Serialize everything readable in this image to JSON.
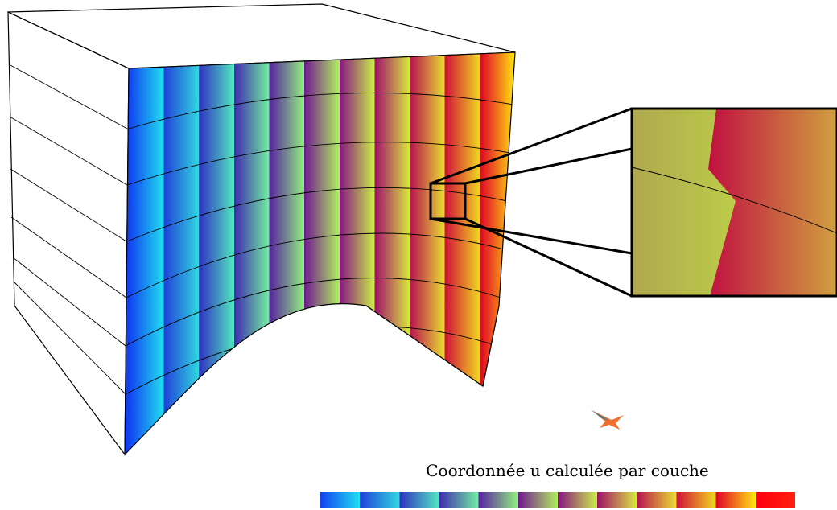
{
  "caption": "Coordonnée u calculée par couche"
}
